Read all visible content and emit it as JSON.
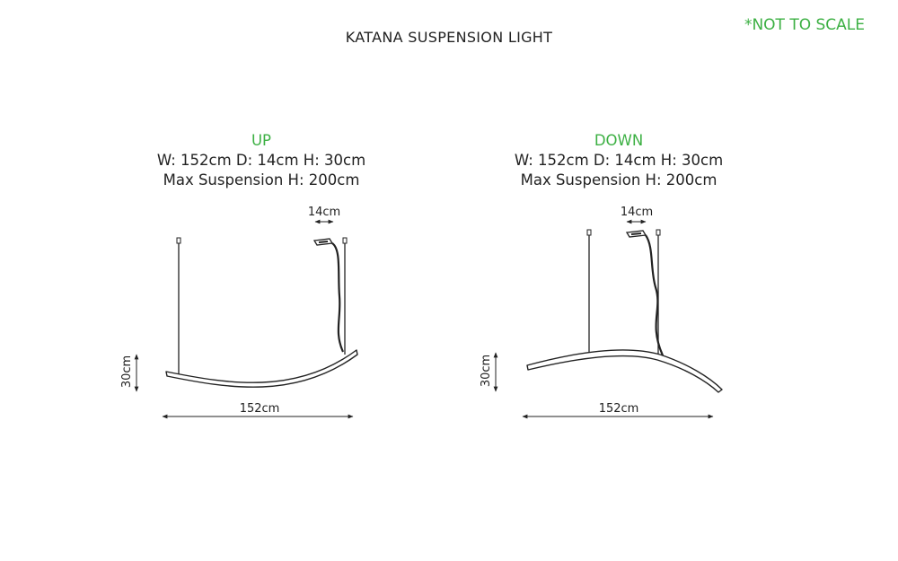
{
  "page": {
    "title": "KATANA SUSPENSION LIGHT",
    "note": "*NOT TO SCALE",
    "accent_color": "#3cb043"
  },
  "variants": [
    {
      "name": "UP",
      "dimensions": "W: 152cm D: 14cm H: 30cm",
      "suspension": "Max Suspension H: 200cm",
      "depth_label": "14cm",
      "height_label": "30cm",
      "width_label": "152cm"
    },
    {
      "name": "DOWN",
      "dimensions": "W: 152cm D: 14cm H: 30cm",
      "suspension": "Max Suspension H: 200cm",
      "depth_label": "14cm",
      "height_label": "30cm",
      "width_label": "152cm"
    }
  ]
}
